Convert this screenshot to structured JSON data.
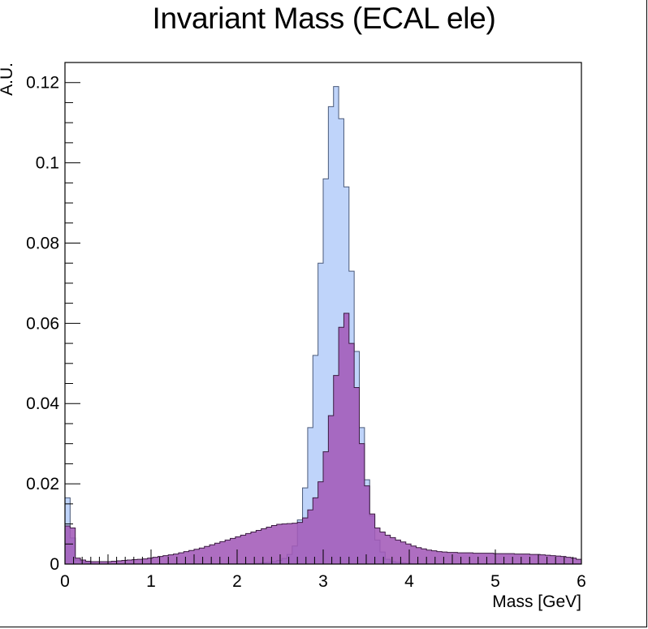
{
  "chart_data": {
    "type": "histogram",
    "title": "Invariant Mass (ECAL ele)",
    "xlabel": "Mass [GeV]",
    "ylabel": "A.U.",
    "xlim": [
      0,
      6
    ],
    "ylim": [
      0,
      0.125
    ],
    "x_ticks": [
      "0",
      "1",
      "2",
      "3",
      "4",
      "5",
      "6"
    ],
    "y_ticks": [
      "0",
      "0.02",
      "0.04",
      "0.06",
      "0.08",
      "0.1",
      "0.12"
    ],
    "bin_width": 0.06,
    "grid": false,
    "series": [
      {
        "fill": "#bfd4fa",
        "stroke": "#4a5a7a",
        "values": [
          0.0165,
          0.0065,
          0.001,
          0.0005,
          0.0003,
          0.0002,
          0.0001,
          0.0001,
          0.0001,
          0.0001,
          0.0001,
          0.0001,
          0.0001,
          0.0001,
          0.0001,
          0.0001,
          0.0001,
          0.0001,
          0.0001,
          0.0001,
          0.0001,
          0.0001,
          0.0001,
          0.0001,
          0.0001,
          0.0001,
          0.0001,
          0.0001,
          0.0001,
          0.0001,
          0.0001,
          0.0001,
          0.0001,
          0.0001,
          0.0001,
          0.0001,
          0.0001,
          0.0002,
          0.0003,
          0.0004,
          0.0006,
          0.0009,
          0.0014,
          0.0024,
          0.0045,
          0.011,
          0.019,
          0.034,
          0.052,
          0.075,
          0.096,
          0.114,
          0.119,
          0.111,
          0.094,
          0.073,
          0.053,
          0.034,
          0.021,
          0.012,
          0.006,
          0.003,
          0.0012,
          0.0006,
          0.0004,
          0.0003,
          0.0002,
          0.0001,
          0.0001,
          0.0001,
          0.0001,
          0.0001,
          0.0001,
          0.0001,
          0.0001,
          0.0001,
          0.0001,
          0.0001,
          0.0001,
          0.0001,
          0.0001,
          0.0001,
          0.0001,
          0.0001,
          0.0001,
          0.0001,
          0.0001,
          0.0001,
          0.0001,
          0.0001,
          0.0001,
          0.0001,
          0.0001,
          0.0001,
          0.0001,
          0.0001,
          0.0001,
          0.0001,
          0.0001,
          0.0001
        ]
      },
      {
        "fill": "#a35ab8",
        "stroke": "#3a1a40",
        "values": [
          0.0095,
          0.009,
          0.0015,
          0.001,
          0.0007,
          0.0006,
          0.0006,
          0.0006,
          0.0006,
          0.0007,
          0.0008,
          0.0009,
          0.001,
          0.0011,
          0.0012,
          0.0013,
          0.0015,
          0.0017,
          0.0019,
          0.0021,
          0.0023,
          0.0025,
          0.0028,
          0.0031,
          0.0034,
          0.0037,
          0.004,
          0.0044,
          0.0048,
          0.0052,
          0.0056,
          0.006,
          0.0064,
          0.0068,
          0.0072,
          0.0076,
          0.008,
          0.0084,
          0.0088,
          0.0092,
          0.0096,
          0.0099,
          0.01,
          0.0101,
          0.0102,
          0.0104,
          0.0115,
          0.0135,
          0.0165,
          0.0205,
          0.028,
          0.037,
          0.047,
          0.059,
          0.0625,
          0.055,
          0.044,
          0.03,
          0.0195,
          0.0125,
          0.009,
          0.008,
          0.0072,
          0.0066,
          0.006,
          0.0055,
          0.005,
          0.0045,
          0.0041,
          0.0038,
          0.0035,
          0.0033,
          0.0031,
          0.003,
          0.0029,
          0.0029,
          0.0028,
          0.0028,
          0.0028,
          0.0027,
          0.0027,
          0.0027,
          0.0027,
          0.0026,
          0.0026,
          0.0026,
          0.0026,
          0.0025,
          0.0025,
          0.0025,
          0.0024,
          0.0024,
          0.0023,
          0.0022,
          0.0021,
          0.002,
          0.0019,
          0.0017,
          0.0015,
          0.0012
        ]
      }
    ]
  }
}
